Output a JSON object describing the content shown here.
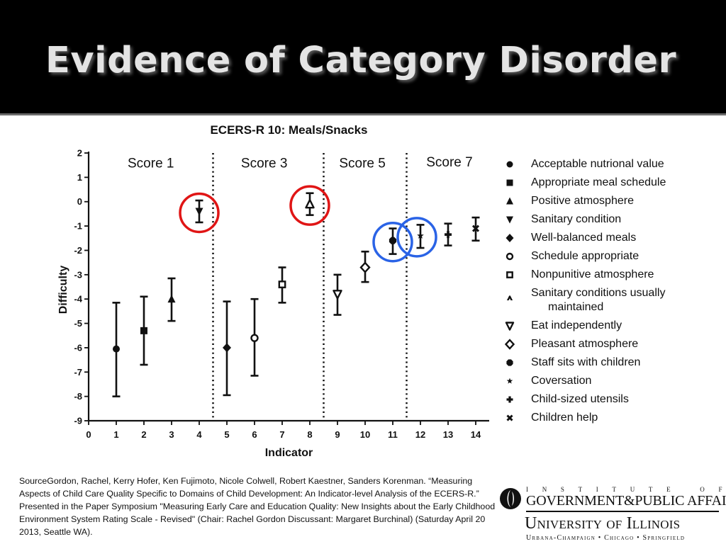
{
  "slide": {
    "title": "Evidence of Category Disorder"
  },
  "chart_data": {
    "type": "scatter",
    "title": "ECERS-R 10: Meals/Snacks",
    "xlabel": "Indicator",
    "ylabel": "Difficulty",
    "xlim": [
      0,
      14.5
    ],
    "ylim": [
      -9,
      2
    ],
    "xticks": [
      0,
      1,
      2,
      3,
      4,
      5,
      6,
      7,
      8,
      9,
      10,
      11,
      12,
      13,
      14
    ],
    "yticks": [
      2,
      1,
      0,
      -1,
      -2,
      -3,
      -4,
      -5,
      -6,
      -7,
      -8,
      -9
    ],
    "grid": false,
    "score_dividers": [
      4.5,
      8.5,
      11.5
    ],
    "score_labels": [
      {
        "text": "Score 1",
        "x": 2.25,
        "y": 1.6
      },
      {
        "text": "Score 3",
        "x": 6.35,
        "y": 1.6
      },
      {
        "text": "Score 5",
        "x": 9.9,
        "y": 1.6
      },
      {
        "text": "Score 7",
        "x": 13.05,
        "y": 1.65
      }
    ],
    "series": [
      {
        "name": "Acceptable nutrional value",
        "marker": "circle",
        "x": 1,
        "y": -6.05,
        "low": -8.0,
        "high": -4.15
      },
      {
        "name": "Appropriate meal schedule",
        "marker": "square",
        "x": 2,
        "y": -5.3,
        "low": -6.7,
        "high": -3.9
      },
      {
        "name": "Positive atmosphere",
        "marker": "triangle-up",
        "x": 3,
        "y": -4.0,
        "low": -4.9,
        "high": -3.15
      },
      {
        "name": "Sanitary condition",
        "marker": "triangle-down",
        "x": 4,
        "y": -0.4,
        "low": -0.85,
        "high": 0.05
      },
      {
        "name": "Well-balanced meals",
        "marker": "diamond",
        "x": 5,
        "y": -6.0,
        "low": -7.95,
        "high": -4.1
      },
      {
        "name": "Schedule appropriate",
        "marker": "circle-open",
        "x": 6,
        "y": -5.6,
        "low": -7.15,
        "high": -4.0
      },
      {
        "name": "Nonpunitive atmosphere",
        "marker": "square-open",
        "x": 7,
        "y": -3.4,
        "low": -4.15,
        "high": -2.7
      },
      {
        "name": "Sanitary conditions usually maintained",
        "marker": "triangle-up-open",
        "x": 8,
        "y": -0.1,
        "low": -0.55,
        "high": 0.35
      },
      {
        "name": "Eat independently",
        "marker": "triangle-down-open",
        "x": 9,
        "y": -3.8,
        "low": -4.65,
        "high": -3.0
      },
      {
        "name": "Pleasant atmosphere",
        "marker": "diamond-open",
        "x": 10,
        "y": -2.7,
        "low": -3.3,
        "high": -2.05
      },
      {
        "name": "Staff sits with children",
        "marker": "hexagon",
        "x": 11,
        "y": -1.6,
        "low": -2.15,
        "high": -1.1
      },
      {
        "name": "Coversation",
        "marker": "star",
        "x": 12,
        "y": -1.4,
        "low": -1.9,
        "high": -0.95
      },
      {
        "name": "Child-sized utensils",
        "marker": "plus",
        "x": 13,
        "y": -1.35,
        "low": -1.8,
        "high": -0.9
      },
      {
        "name": "Children help",
        "marker": "x",
        "x": 14,
        "y": -1.1,
        "low": -1.6,
        "high": -0.65
      }
    ],
    "highlights": [
      {
        "indicator": 4,
        "color": "#e01515"
      },
      {
        "indicator": 8,
        "color": "#e01515"
      },
      {
        "indicator": 11,
        "color": "#2a63e6"
      },
      {
        "indicator": 12,
        "color": "#2a63e6"
      }
    ],
    "legend": {
      "position": "right"
    }
  },
  "source": {
    "text": "SourceGordon, Rachel, Kerry Hofer, Ken Fujimoto, Nicole Colwell, Robert Kaestner, Sanders Korenman. “Measuring Aspects of Child Care Quality Specific to Domains of Child Development: An Indicator-level Analysis of the ECERS-R.” Presented in the Paper Symposium \"Measuring Early Care and Education Quality: New Insights about the Early Childhood Environment System Rating Scale - Revised\" (Chair: Rachel Gordon Discussant: Margaret Burchinal) (Saturday April 20 2013, Seattle WA)."
  },
  "logo": {
    "line1": "INSTITUTE OF",
    "line2": "GOVERNMENT&PUBLIC AFFAIRS",
    "line3": "University of Illinois",
    "line4": "Urbana-Champaign • Chicago • Springfield"
  }
}
